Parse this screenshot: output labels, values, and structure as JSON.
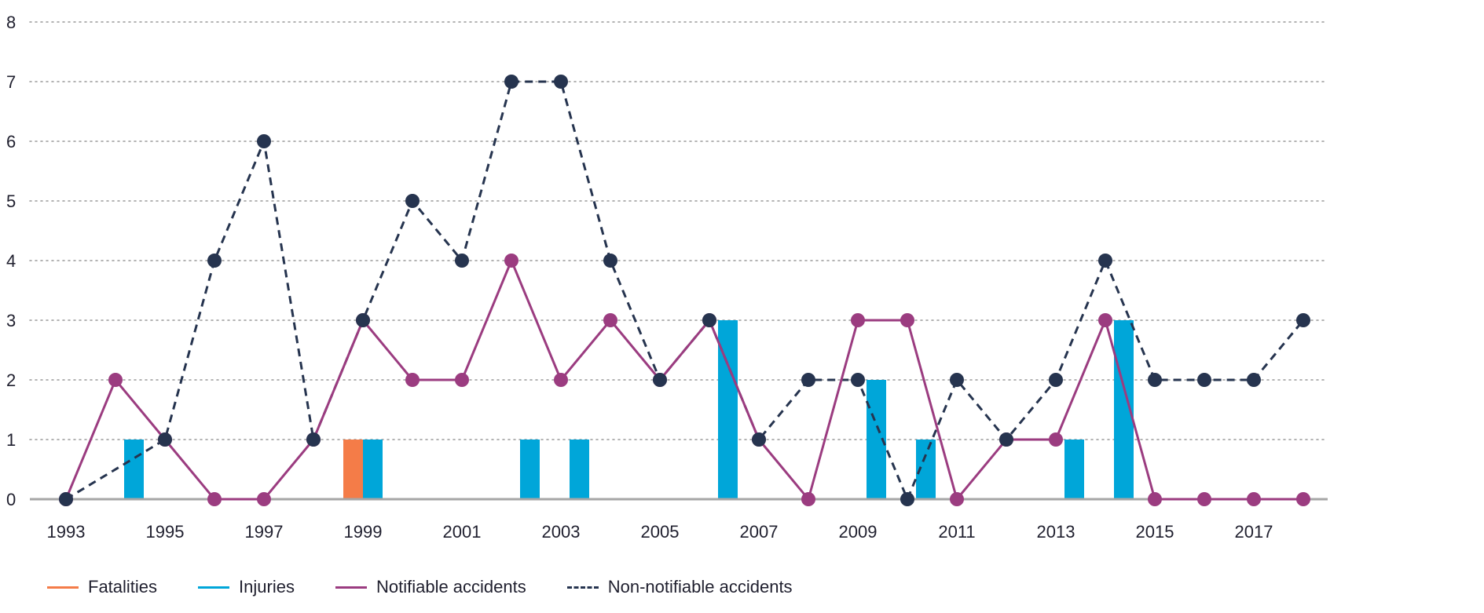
{
  "chart_data": {
    "type": "bar+line",
    "title": "",
    "xlabel": "",
    "ylabel": "",
    "ylim": [
      0,
      8
    ],
    "y_ticks": [
      "0",
      "1",
      "2",
      "3",
      "4",
      "5",
      "6",
      "7",
      "8"
    ],
    "x": [
      1993,
      1994,
      1995,
      1996,
      1997,
      1998,
      1999,
      2000,
      2001,
      2002,
      2003,
      2004,
      2005,
      2006,
      2007,
      2008,
      2009,
      2010,
      2011,
      2012,
      2013,
      2014,
      2015,
      2016,
      2017,
      2018
    ],
    "x_tick_labels": [
      "1993",
      "1995",
      "1997",
      "1999",
      "2001",
      "2003",
      "2005",
      "2007",
      "2009",
      "2011",
      "2013",
      "2015",
      "2017"
    ],
    "grid": "horizontal-dotted",
    "legend_position": "bottom-left",
    "series": [
      {
        "name": "Fatalities",
        "kind": "bar",
        "color": "#f47c48",
        "values": [
          0,
          0,
          0,
          0,
          0,
          0,
          1,
          0,
          0,
          0,
          0,
          0,
          0,
          0,
          0,
          0,
          0,
          0,
          0,
          0,
          0,
          0,
          0,
          0,
          0,
          0
        ]
      },
      {
        "name": "Injuries",
        "kind": "bar",
        "color": "#00a6d9",
        "values": [
          0,
          1,
          0,
          0,
          0,
          0,
          1,
          0,
          0,
          1,
          1,
          0,
          0,
          3,
          0,
          0,
          2,
          1,
          0,
          0,
          1,
          3,
          0,
          0,
          0,
          0
        ]
      },
      {
        "name": "Notifiable accidents",
        "kind": "line",
        "style": "solid",
        "color": "#9b3c80",
        "values": [
          0,
          2,
          1,
          0,
          0,
          1,
          3,
          2,
          2,
          4,
          2,
          3,
          2,
          3,
          1,
          0,
          3,
          3,
          0,
          1,
          1,
          3,
          0,
          0,
          0,
          0
        ]
      },
      {
        "name": "Non-notifiable accidents",
        "kind": "line",
        "style": "dashed",
        "color": "#26344f",
        "values": [
          0,
          null,
          1,
          4,
          6,
          1,
          3,
          5,
          4,
          7,
          7,
          4,
          2,
          3,
          1,
          2,
          2,
          0,
          2,
          1,
          2,
          4,
          2,
          2,
          2,
          3
        ]
      }
    ]
  },
  "legend": {
    "items": [
      {
        "label": "Fatalities",
        "color": "#f47c48",
        "style": "solid"
      },
      {
        "label": "Injuries",
        "color": "#00a6d9",
        "style": "solid"
      },
      {
        "label": "Notifiable accidents",
        "color": "#9b3c80",
        "style": "solid"
      },
      {
        "label": "Non-notifiable accidents",
        "color": "#26344f",
        "style": "dashed"
      }
    ]
  },
  "colors": {
    "axis": "#a6a6a6",
    "grid": "#9a9a9a",
    "text": "#1f1f2e"
  }
}
